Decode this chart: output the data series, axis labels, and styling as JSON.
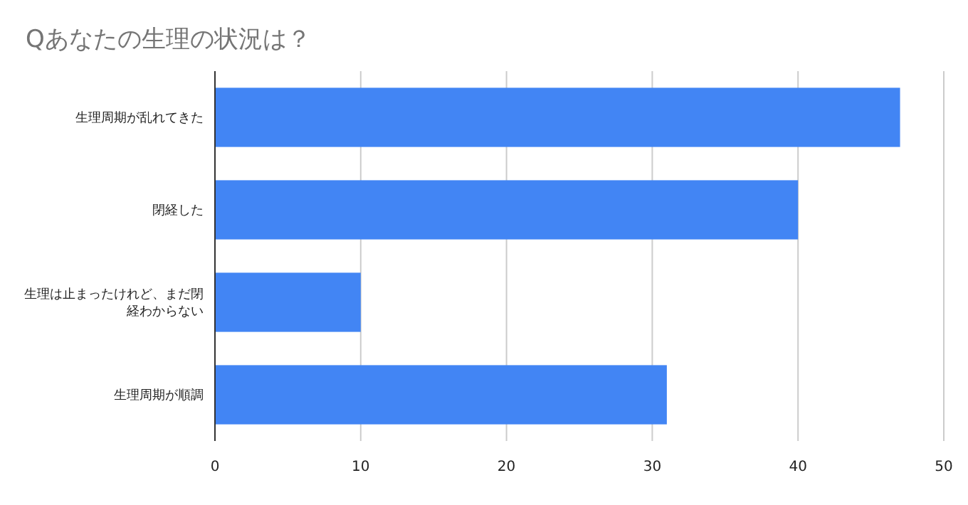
{
  "chart_data": {
    "type": "bar",
    "orientation": "horizontal",
    "title": "Qあなたの生理の状況は？",
    "categories": [
      "生理周期が乱れてきた",
      "閉経した",
      "生理は止まったけれど、まだ閉経わからない",
      "生理周期が順調"
    ],
    "values": [
      47,
      40,
      10,
      31
    ],
    "color": "#4285f4",
    "xlim": [
      0,
      50
    ],
    "xticks": [
      0,
      10,
      20,
      30,
      40,
      50
    ],
    "grid": "x"
  }
}
